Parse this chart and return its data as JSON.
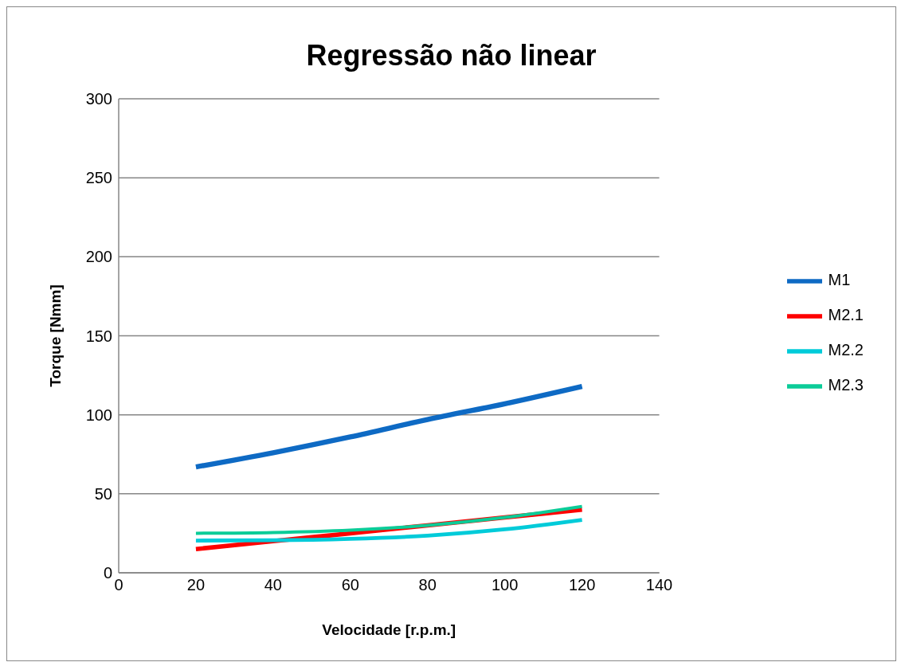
{
  "chart_data": {
    "type": "line",
    "title": "Regressão não linear",
    "xlabel": "Velocidade  [r.p.m.]",
    "ylabel": "Torque [Nmm]",
    "x": [
      20,
      40,
      60,
      80,
      100,
      120
    ],
    "series": [
      {
        "name": "M1",
        "color": "#0e6ac4",
        "values": [
          67,
          76,
          86,
          97,
          107,
          118
        ]
      },
      {
        "name": "M2.1",
        "color": "#fe0000",
        "values": [
          15,
          20,
          25,
          30,
          35,
          40
        ]
      },
      {
        "name": "M2.2",
        "color": "#00cbd9",
        "values": [
          20.4,
          20.6,
          21.5,
          23.5,
          27.5,
          33.5
        ]
      },
      {
        "name": "M2.3",
        "color": "#0bcc98",
        "values": [
          25,
          25.5,
          27,
          30,
          35,
          42
        ]
      }
    ],
    "xlim": [
      0,
      140
    ],
    "xticks": [
      0,
      20,
      40,
      60,
      80,
      100,
      120,
      140
    ],
    "ylim": [
      0,
      300
    ],
    "yticks": [
      0,
      50,
      100,
      150,
      200,
      250,
      300
    ],
    "grid": "y",
    "legend": "right",
    "marker": "none",
    "line_style": "solid"
  }
}
